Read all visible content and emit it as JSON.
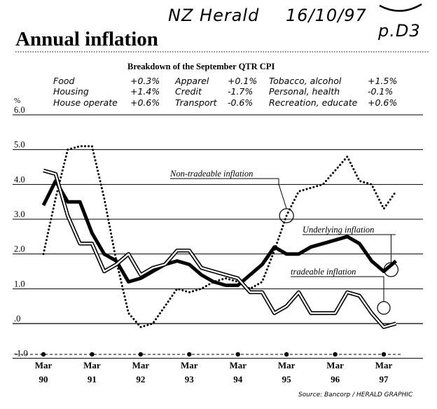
{
  "handwritten": {
    "source": "NZ Herald",
    "date": "16/10/97",
    "page": "p.D3"
  },
  "title": "Annual inflation",
  "subtitle": "Breakdown of the September QTR CPI",
  "breakdown": [
    {
      "name": "Food",
      "value": "+0.3%"
    },
    {
      "name": "Housing",
      "value": "+1.4%"
    },
    {
      "name": "House operate",
      "value": "+0.6%"
    },
    {
      "name": "Apparel",
      "value": "+0.1%"
    },
    {
      "name": "Credit",
      "value": "-1.7%"
    },
    {
      "name": "Transport",
      "value": "-0.6%"
    },
    {
      "name": "Tobacco, alcohol",
      "value": "+1.5%"
    },
    {
      "name": "Personal, health",
      "value": "-0.1%"
    },
    {
      "name": "Recreation, educate",
      "value": "+0.6%"
    }
  ],
  "source_note": "Source: Bancorp / HERALD GRAPHIC",
  "chart_data": {
    "type": "line",
    "ylabel": "%",
    "ylim": [
      -1.0,
      6.0
    ],
    "yticks": [
      6.0,
      5.0,
      4.0,
      3.0,
      2.0,
      1.0,
      0.0,
      -1.0
    ],
    "ytick_labels": [
      "6.0",
      "5.0",
      "4.0",
      "3.0",
      "2.0",
      "1.0",
      ".0",
      "-1.0"
    ],
    "grid": true,
    "x_ticks": [
      {
        "x": 1990.0,
        "label_top": "Mar",
        "label_bottom": "90"
      },
      {
        "x": 1991.0,
        "label_top": "Mar",
        "label_bottom": "91"
      },
      {
        "x": 1992.0,
        "label_top": "Mar",
        "label_bottom": "92"
      },
      {
        "x": 1993.0,
        "label_top": "Mar",
        "label_bottom": "93"
      },
      {
        "x": 1994.0,
        "label_top": "Mar",
        "label_bottom": "94"
      },
      {
        "x": 1995.0,
        "label_top": "Mar",
        "label_bottom": "95"
      },
      {
        "x": 1996.0,
        "label_top": "Mar",
        "label_bottom": "96"
      },
      {
        "x": 1997.0,
        "label_top": "Mar",
        "label_bottom": "97"
      }
    ],
    "xlim": [
      1989.7,
      1997.35
    ],
    "series": [
      {
        "name": "Non-tradeable inflation",
        "style": "dotted",
        "x": [
          1990.0,
          1990.25,
          1990.5,
          1990.75,
          1991.0,
          1991.25,
          1991.5,
          1991.75,
          1992.0,
          1992.25,
          1992.5,
          1992.75,
          1993.0,
          1993.25,
          1993.5,
          1993.75,
          1994.0,
          1994.25,
          1994.5,
          1994.75,
          1995.0,
          1995.25,
          1995.5,
          1995.75,
          1996.0,
          1996.25,
          1996.5,
          1996.75,
          1997.0,
          1997.25
        ],
        "values": [
          2.0,
          3.6,
          5.0,
          5.1,
          5.1,
          3.6,
          1.8,
          0.3,
          -0.1,
          0.0,
          0.5,
          1.0,
          0.9,
          1.0,
          1.2,
          1.3,
          1.2,
          1.0,
          1.2,
          2.1,
          3.1,
          3.8,
          3.9,
          4.0,
          4.4,
          4.8,
          4.1,
          4.0,
          3.3,
          3.8
        ]
      },
      {
        "name": "Underlying inflation",
        "style": "thick",
        "x": [
          1990.0,
          1990.25,
          1990.5,
          1990.75,
          1991.0,
          1991.25,
          1991.5,
          1991.75,
          1992.0,
          1992.25,
          1992.5,
          1992.75,
          1993.0,
          1993.25,
          1993.5,
          1993.75,
          1994.0,
          1994.25,
          1994.5,
          1994.75,
          1995.0,
          1995.25,
          1995.5,
          1995.75,
          1996.0,
          1996.25,
          1996.5,
          1996.75,
          1997.0,
          1997.25
        ],
        "values": [
          3.4,
          4.1,
          3.5,
          3.5,
          2.6,
          2.0,
          1.8,
          1.2,
          1.3,
          1.5,
          1.7,
          1.8,
          1.7,
          1.4,
          1.2,
          1.1,
          1.1,
          1.4,
          1.7,
          2.2,
          2.0,
          2.0,
          2.2,
          2.3,
          2.4,
          2.5,
          2.3,
          1.8,
          1.5,
          1.8
        ]
      },
      {
        "name": "tradeable inflation",
        "style": "double",
        "x": [
          1990.0,
          1990.25,
          1990.5,
          1990.75,
          1991.0,
          1991.25,
          1991.5,
          1991.75,
          1992.0,
          1992.25,
          1992.5,
          1992.75,
          1993.0,
          1993.25,
          1993.5,
          1993.75,
          1994.0,
          1994.25,
          1994.5,
          1994.75,
          1995.0,
          1995.25,
          1995.5,
          1995.75,
          1996.0,
          1996.25,
          1996.5,
          1996.75,
          1997.0,
          1997.25
        ],
        "values": [
          4.4,
          4.3,
          3.1,
          2.3,
          2.3,
          1.5,
          1.7,
          2.0,
          1.4,
          1.6,
          1.7,
          2.1,
          2.1,
          1.6,
          1.5,
          1.4,
          1.3,
          0.9,
          0.9,
          0.3,
          0.5,
          0.9,
          0.3,
          0.3,
          0.3,
          0.9,
          0.8,
          0.3,
          -0.1,
          0.0
        ]
      }
    ],
    "annotations": [
      {
        "series": "Non-tradeable inflation",
        "text": "Non-tradeable inflation",
        "x": 1995.0,
        "y": 3.1
      },
      {
        "series": "Underlying inflation",
        "text": "Underlying inflation",
        "x": 1997.15,
        "y": 1.55
      },
      {
        "series": "tradeable inflation",
        "text": "tradeable inflation",
        "x": 1997.0,
        "y": 0.45
      }
    ]
  }
}
